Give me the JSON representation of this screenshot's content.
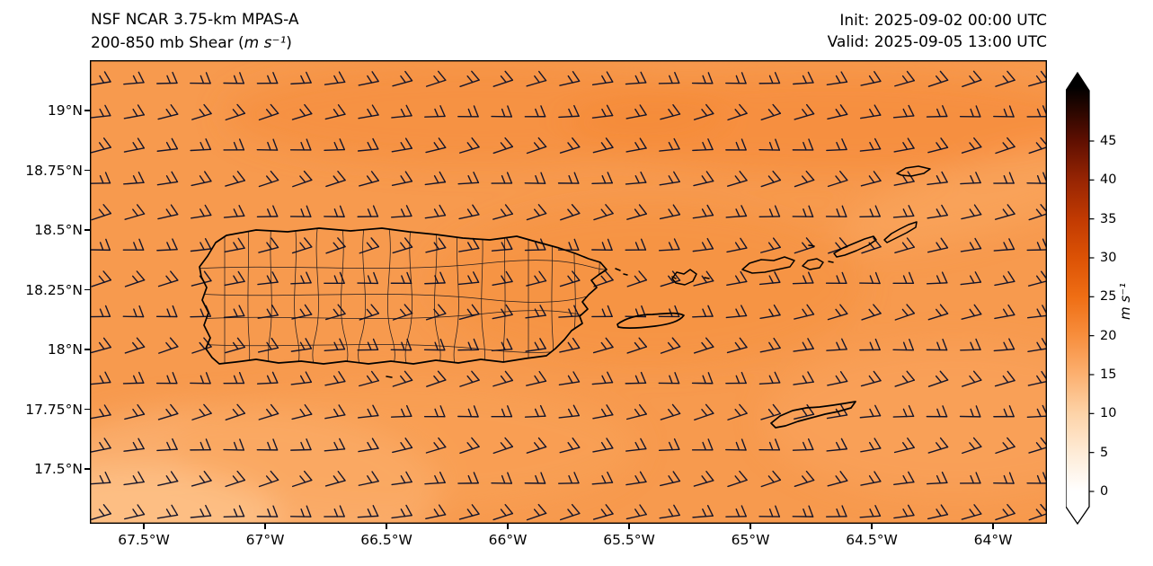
{
  "header": {
    "title_line1": "NSF NCAR 3.75-km MPAS-A",
    "title_line2_prefix": "200-850 mb Shear (",
    "title_line2_units": "m s⁻¹",
    "title_line2_suffix": ")",
    "init_label": "Init: 2025-09-02 00:00 UTC",
    "valid_label": "Valid: 2025-09-05 13:00 UTC"
  },
  "chart_data": {
    "type": "heatmap",
    "subtype": "filled-contour map with wind barbs",
    "title": "NSF NCAR 3.75-km MPAS-A — 200-850 mb Shear (m s⁻¹)",
    "init_time": "2025-09-02 00:00 UTC",
    "valid_time": "2025-09-05 13:00 UTC",
    "region": "Puerto Rico and U.S./British Virgin Islands",
    "x_axis": {
      "ticks": [
        "67.5°W",
        "67°W",
        "66.5°W",
        "66°W",
        "65.5°W",
        "65°W",
        "64.5°W",
        "64°W"
      ],
      "range_deg_west": [
        67.72,
        63.78
      ]
    },
    "y_axis": {
      "ticks": [
        "19°N",
        "18.75°N",
        "18.5°N",
        "18.25°N",
        "18°N",
        "17.75°N",
        "17.5°N"
      ],
      "range_deg_north": [
        17.27,
        19.21
      ]
    },
    "colorbar": {
      "label": "m s⁻¹",
      "ticks": [
        0,
        5,
        10,
        15,
        20,
        25,
        30,
        35,
        40,
        45
      ],
      "extend": "both",
      "stops": [
        {
          "value": 0,
          "color": "#ffffff"
        },
        {
          "value": 5,
          "color": "#feebd6"
        },
        {
          "value": 10,
          "color": "#fdd3a8"
        },
        {
          "value": 15,
          "color": "#fcb070"
        },
        {
          "value": 20,
          "color": "#f78e3d"
        },
        {
          "value": 25,
          "color": "#ef6e14"
        },
        {
          "value": 30,
          "color": "#dc5205"
        },
        {
          "value": 35,
          "color": "#c13a02"
        },
        {
          "value": 40,
          "color": "#972503"
        },
        {
          "value": 45,
          "color": "#5f0f01"
        },
        {
          "value": 52,
          "color": "#000000"
        }
      ]
    },
    "field_summary": {
      "shear_values_visible_m_s": [
        12,
        20
      ],
      "dominant_value_m_s": 17,
      "barb_direction": "east-northeasterly",
      "approx_barb_speed_m_s": 15,
      "barb_grid": {
        "columns": 29,
        "rows": 14
      }
    },
    "map_features": [
      "Puerto Rico with municipal boundaries",
      "Vieques",
      "Culebra",
      "St. Thomas",
      "St. John",
      "Tortola",
      "Virgin Gorda",
      "Anegada",
      "St. Croix"
    ]
  },
  "map": {
    "base_color": "#f79a4e",
    "coastline_color": "#000000",
    "barb_color": "#15152a"
  }
}
